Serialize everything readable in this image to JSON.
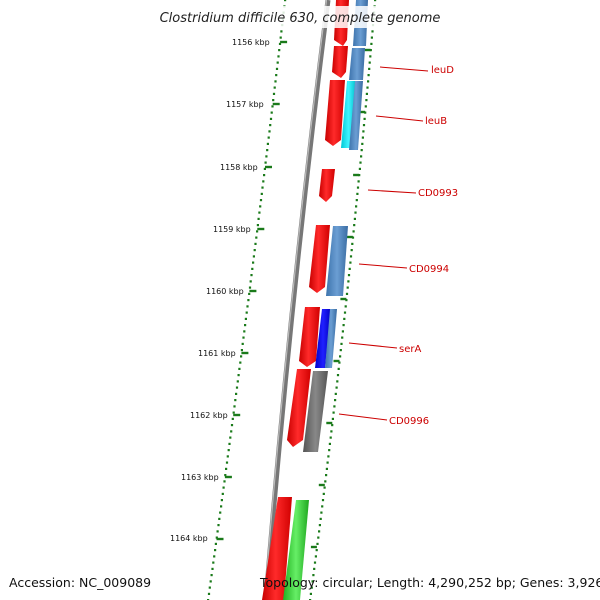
{
  "title": "Clostridium difficile 630, complete genome",
  "kbp_labels": [
    "1156 kbp",
    "1157 kbp",
    "1158 kbp",
    "1159 kbp",
    "1160 kbp",
    "1161 kbp",
    "1162 kbp",
    "1163 kbp",
    "1164 kbp"
  ],
  "gene_labels": [
    "leuD",
    "leuB",
    "CD0993",
    "CD0994",
    "serA",
    "CD0996"
  ],
  "footer": {
    "accession": "Accession: NC_009089",
    "topology": "Topology: circular; Length: 4,290,252 bp; Genes: 3,926"
  },
  "colors": {
    "gene_red": "#ff1010",
    "cog_steelblue": "#4f86c0",
    "cog_cyan": "#00e5ee",
    "cog_blue": "#0000ee",
    "cog_gray": "#6e6e6e",
    "cog_green": "#33cc33",
    "scale_green": "#1a7a1a",
    "label_red": "#cc0000"
  }
}
